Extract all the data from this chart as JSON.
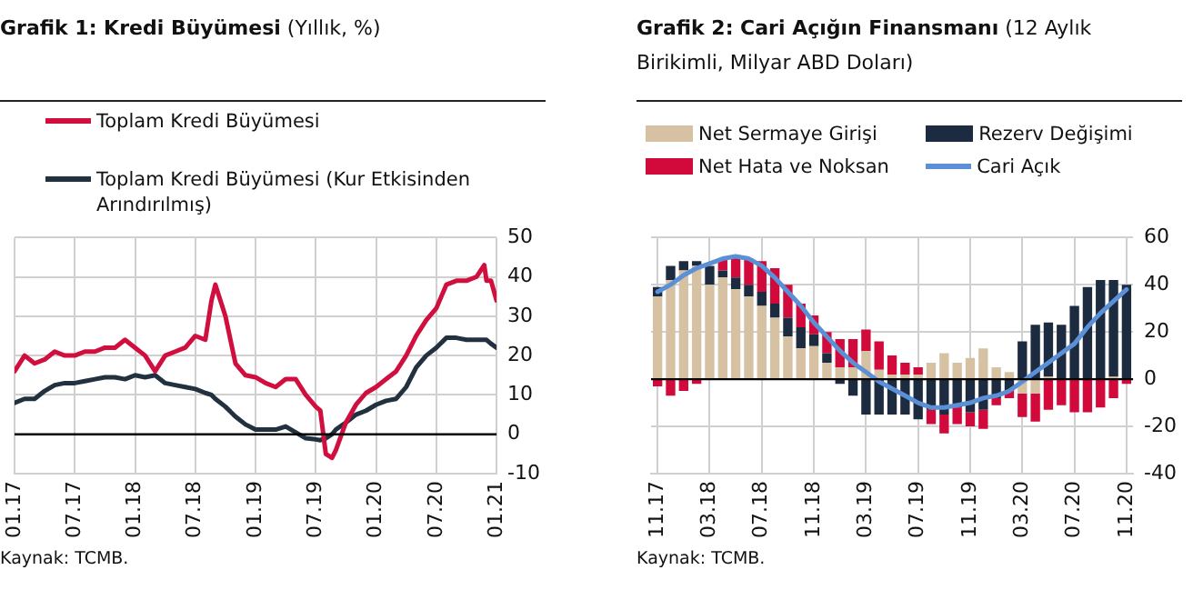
{
  "chart_data": [
    {
      "type": "line",
      "title": "Grafik 1: Kredi Büyümesi",
      "subtitle": "(Yıllık, %)",
      "x": [
        "2017-01",
        "2017-02",
        "2017-03",
        "2017-04",
        "2017-05",
        "2017-06",
        "2017-07",
        "2017-08",
        "2017-09",
        "2017-10",
        "2017-11",
        "2017-12",
        "2018-01",
        "2018-02",
        "2018-03",
        "2018-04",
        "2018-05",
        "2018-06",
        "2018-07",
        "2018-08",
        "2018-08-20",
        "2018-09",
        "2018-10",
        "2018-11",
        "2018-12",
        "2019-01",
        "2019-02",
        "2019-03",
        "2019-04",
        "2019-05",
        "2019-06",
        "2019-07",
        "2019-07-15",
        "2019-08",
        "2019-08-20",
        "2019-09",
        "2019-10",
        "2019-11",
        "2019-12",
        "2020-01",
        "2020-02",
        "2020-03",
        "2020-04",
        "2020-05",
        "2020-06",
        "2020-07",
        "2020-08",
        "2020-09",
        "2020-10",
        "2020-11",
        "2020-11-25",
        "2020-12",
        "2020-12-15",
        "2021-01"
      ],
      "series": [
        {
          "name": "Toplam Kredi Büyümesi",
          "color": "#d10f3f",
          "values": [
            16,
            20,
            18,
            19,
            21,
            20,
            20,
            21,
            21,
            22,
            22,
            24,
            22,
            20,
            16,
            20,
            21,
            22,
            25,
            24,
            34,
            38,
            30,
            18,
            15,
            14.5,
            13,
            12,
            14,
            14,
            10,
            7,
            6,
            -5,
            -6,
            -4,
            3,
            7.5,
            10.5,
            12,
            14,
            16,
            20,
            25,
            29,
            32,
            38,
            39,
            39,
            40,
            43,
            39,
            39,
            34
          ]
        },
        {
          "name": "Toplam Kredi Büyümesi (Kur Etkisinden Arındırılmış)",
          "color": "#22313f",
          "values": [
            8,
            9,
            9,
            11,
            12.5,
            13,
            13,
            13.5,
            14,
            14.5,
            14.5,
            14,
            15,
            14.5,
            15,
            13,
            12.5,
            12,
            11.5,
            10.5,
            10,
            9,
            7,
            4.5,
            2.5,
            1.2,
            1.2,
            1.2,
            2,
            0.5,
            -1,
            -1.3,
            -1.5,
            -1,
            0,
            1.2,
            3,
            5,
            6,
            7.5,
            8.5,
            9,
            12,
            17,
            20,
            22,
            24.5,
            24.5,
            24,
            24,
            24,
            24,
            23,
            22
          ]
        }
      ],
      "xlim": [
        "2017-01",
        "2021-01"
      ],
      "xticks": [
        {
          "value": "2017-01",
          "label": "01.17"
        },
        {
          "value": "2017-07",
          "label": "07.17"
        },
        {
          "value": "2018-01",
          "label": "01.18"
        },
        {
          "value": "2018-07",
          "label": "07.18"
        },
        {
          "value": "2019-01",
          "label": "01.19"
        },
        {
          "value": "2019-07",
          "label": "07.19"
        },
        {
          "value": "2020-01",
          "label": "01.20"
        },
        {
          "value": "2020-07",
          "label": "07.20"
        },
        {
          "value": "2021-01",
          "label": "01.21"
        }
      ],
      "ylim": [
        -10,
        50
      ],
      "yticks": [
        -10,
        0,
        10,
        20,
        30,
        40,
        50
      ],
      "ref_lines": [
        {
          "axis": "y",
          "value": 0,
          "color": "#000000"
        }
      ],
      "grid": true,
      "legend": "top",
      "marker": "none",
      "line_style": "solid",
      "annotations": [
        "Kaynak: TCMB."
      ]
    },
    {
      "type": "bar",
      "title": "Grafik 2: Cari Açığın Finansmanı",
      "subtitle": "(12 Aylık Birikimli, Milyar ABD Doları)",
      "categories": [
        "11.17",
        null,
        null,
        null,
        "03.18",
        null,
        null,
        null,
        "07.18",
        null,
        null,
        null,
        "11.18",
        null,
        null,
        null,
        "03.19",
        null,
        null,
        null,
        "07.19",
        null,
        null,
        null,
        "11.19",
        null,
        null,
        null,
        "03.20",
        null,
        null,
        null,
        "07.20",
        null,
        null,
        null,
        "11.20"
      ],
      "stacked": true,
      "series": [
        {
          "name": "Net Sermaye Girişi",
          "color": "#d6c2a2",
          "values": [
            35,
            42,
            46,
            48,
            40,
            43,
            38,
            35,
            31,
            26,
            18,
            13,
            14,
            7,
            5,
            5,
            12,
            4,
            2,
            2,
            2,
            7,
            11,
            7,
            9,
            13,
            5,
            3,
            -6,
            -6,
            1,
            0,
            0,
            0,
            0,
            1,
            0
          ]
        },
        {
          "name": "Rezerv Değişimi",
          "color": "#1c2b3f",
          "values": [
            4,
            6,
            4,
            2,
            8,
            3,
            5,
            5,
            6,
            6,
            8,
            9,
            5,
            4,
            -2,
            -7,
            -15,
            -15,
            -15,
            -15,
            -17,
            -13,
            -15,
            -12,
            -14,
            -13,
            -8,
            -5,
            16,
            23,
            23,
            23,
            31,
            39,
            42,
            41,
            40
          ]
        },
        {
          "name": "Net Hata ve Noksan",
          "color": "#d20a3c",
          "values": [
            -3,
            -7,
            -5,
            -2,
            null,
            5,
            9,
            11,
            13,
            15,
            14,
            10,
            8,
            9,
            12,
            12,
            9,
            12,
            8,
            5,
            3,
            -6,
            -8,
            -7,
            -6,
            -8,
            -3,
            -3,
            -10,
            -12,
            -13,
            -11,
            -14,
            -14,
            -12,
            -8,
            -2
          ]
        },
        {
          "name": "Cari Açık",
          "type": "line",
          "color": "#5b8fd6",
          "values": [
            37,
            40,
            44,
            47,
            49,
            51,
            52,
            51,
            48,
            43,
            37,
            31,
            24,
            18,
            12,
            7,
            3,
            -1,
            -4,
            -7,
            -10,
            -12,
            -12,
            -11,
            -10,
            -8,
            -7,
            -5,
            -1,
            3,
            7,
            11,
            15,
            22,
            28,
            33,
            38
          ]
        }
      ],
      "ylim": [
        -40,
        60
      ],
      "yticks": [
        -40,
        -20,
        0,
        20,
        40,
        60
      ],
      "ref_lines": [
        {
          "axis": "y",
          "value": 0,
          "color": "#000000"
        }
      ],
      "grid": true,
      "legend": "top",
      "marker": "none",
      "line_style": "solid",
      "annotations": [
        "Kaynak: TCMB."
      ]
    }
  ]
}
